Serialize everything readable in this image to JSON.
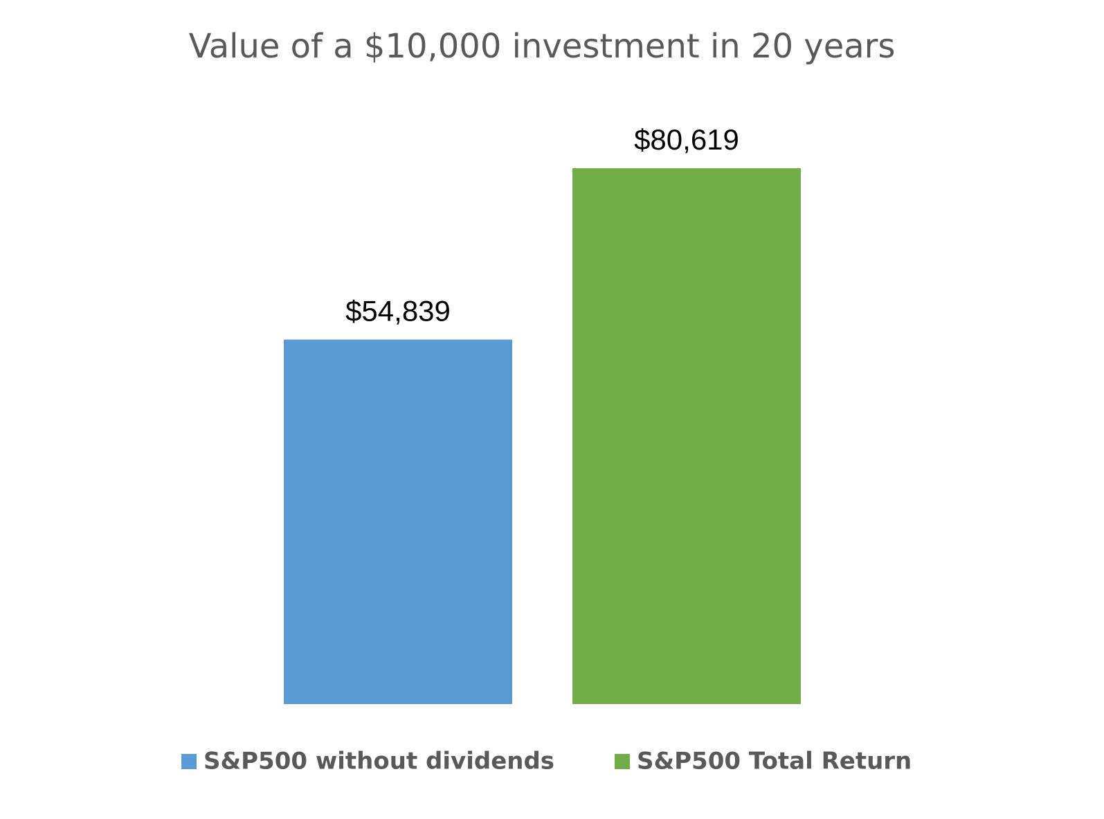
{
  "chart_data": {
    "type": "bar",
    "title": "Value of a $10,000 investment in 20 years",
    "categories": [
      null
    ],
    "series": [
      {
        "name": "S&P500 without dividends",
        "color": "#5b9bd5",
        "values": [
          54839
        ],
        "value_labels": [
          "$54,839"
        ]
      },
      {
        "name": "S&P500 Total Return",
        "color": "#70ad47",
        "values": [
          80619
        ],
        "value_labels": [
          "$80,619"
        ]
      }
    ],
    "legend": "bottom"
  }
}
